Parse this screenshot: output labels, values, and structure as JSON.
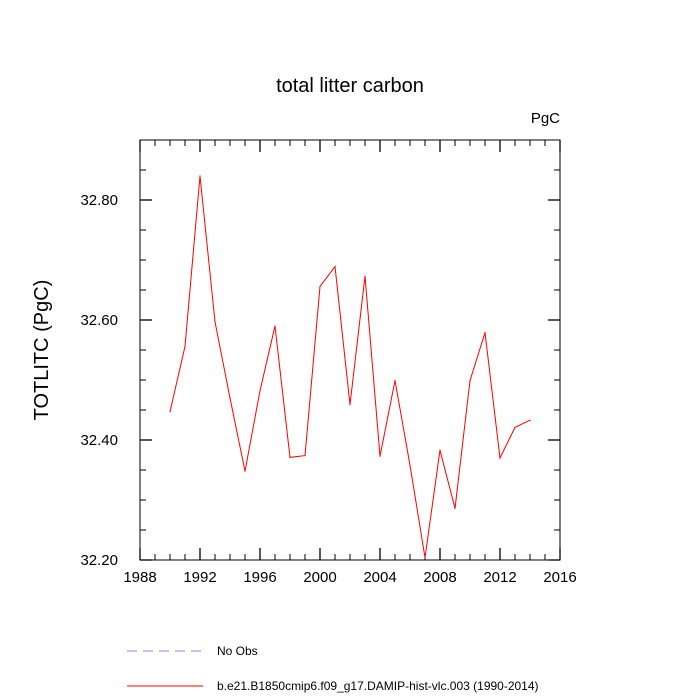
{
  "chart_data": {
    "type": "line",
    "title": "total litter carbon",
    "units_label": "PgC",
    "xlabel": "",
    "ylabel": "TOTLITC  (PgC)",
    "xlim": [
      1988,
      2016
    ],
    "ylim": [
      32.2,
      32.9
    ],
    "x_ticks": [
      1988,
      1992,
      1996,
      2000,
      2004,
      2008,
      2012,
      2016
    ],
    "x_tick_labels": [
      "1988",
      "1992",
      "1996",
      "2000",
      "2004",
      "2008",
      "2012",
      "2016"
    ],
    "y_ticks": [
      32.2,
      32.4,
      32.6,
      32.8
    ],
    "y_tick_labels": [
      "32.20",
      "32.40",
      "32.60",
      "32.80"
    ],
    "series": [
      {
        "name": "b.e21.B1850cmip6.f09_g17.DAMIP-hist-vlc.003 (1990-2014)",
        "color": "#ff0000",
        "x": [
          1990,
          1991,
          1992,
          1993,
          1994,
          1995,
          1996,
          1997,
          1998,
          1999,
          2000,
          2001,
          2002,
          2003,
          2004,
          2005,
          2006,
          2007,
          2008,
          2009,
          2010,
          2011,
          2012,
          2013,
          2014
        ],
        "y": [
          32.447,
          32.556,
          32.84,
          32.597,
          32.47,
          32.348,
          32.482,
          32.59,
          32.371,
          32.374,
          32.656,
          32.689,
          32.459,
          32.673,
          32.373,
          32.499,
          32.358,
          32.204,
          32.383,
          32.286,
          32.499,
          32.579,
          32.37,
          32.421,
          32.433
        ]
      }
    ],
    "legend": [
      {
        "label": "No Obs",
        "color": "#8888ff",
        "style": "dashed"
      },
      {
        "label": "b.e21.B1850cmip6.f09_g17.DAMIP-hist-vlc.003 (1990-2014)",
        "color": "#ff0000",
        "style": "solid"
      }
    ]
  }
}
